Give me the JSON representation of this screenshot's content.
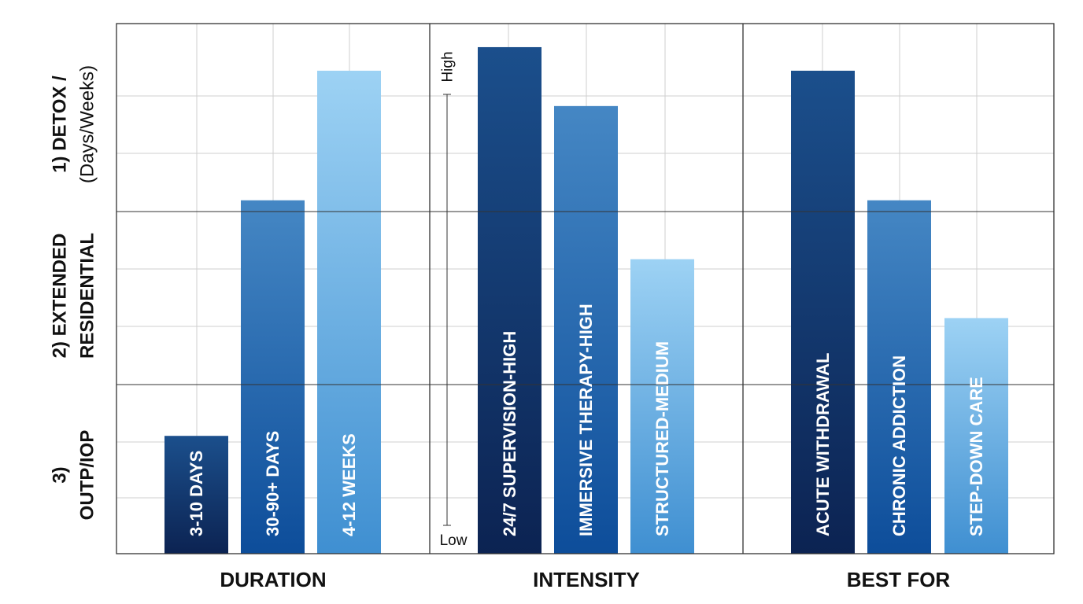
{
  "colors": {
    "grid": "#cfcfcf",
    "frame": "#333333",
    "label": "#111111",
    "bar_text": "#ffffff",
    "bar_dark_top": "#1b4f8c",
    "bar_dark_bottom": "#0c2352",
    "bar_mid_top": "#4587c4",
    "bar_mid_bottom": "#0d4d9a",
    "bar_light_top": "#9dd2f4",
    "bar_light_bottom": "#3f8fd1"
  },
  "chart_data": {
    "type": "bar",
    "title": "",
    "row_labels": [
      {
        "lines": [
          "1) DETOX /",
          "(Days/Weeks)"
        ],
        "bold": [
          true,
          false
        ]
      },
      {
        "lines": [
          "2) EXTENDED",
          "RESIDENTIAL"
        ],
        "bold": [
          true,
          true
        ]
      },
      {
        "lines": [
          "3)",
          "OUTP/IOP"
        ],
        "bold": [
          true,
          true
        ]
      }
    ],
    "ylim": [
      0,
      9
    ],
    "grid": true,
    "intensity_scale": {
      "high": "High",
      "low": "Low"
    },
    "panels": [
      {
        "label": "DURATION",
        "bars": [
          {
            "label": "3-10 DAYS",
            "value": 2.0,
            "shade": "dark"
          },
          {
            "label": "30-90+ DAYS",
            "value": 6.0,
            "shade": "mid"
          },
          {
            "label": "4-12 WEEKS",
            "value": 8.2,
            "shade": "light"
          }
        ]
      },
      {
        "label": "INTENSITY",
        "bars": [
          {
            "label": "24/7 SUPERVISION-HIGH",
            "value": 8.6,
            "shade": "dark"
          },
          {
            "label": "IMMERSIVE THERAPY-HIGH",
            "value": 7.6,
            "shade": "mid"
          },
          {
            "label": "STRUCTURED-MEDIUM",
            "value": 5.0,
            "shade": "light"
          }
        ]
      },
      {
        "label": "BEST FOR",
        "bars": [
          {
            "label": "ACUTE WITHDRAWAL",
            "value": 8.2,
            "shade": "dark"
          },
          {
            "label": "CHRONIC ADDICTION",
            "value": 6.0,
            "shade": "mid"
          },
          {
            "label": "STEP-DOWN CARE",
            "value": 4.0,
            "shade": "light"
          }
        ]
      }
    ]
  }
}
